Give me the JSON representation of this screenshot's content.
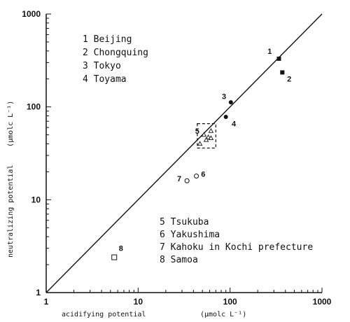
{
  "chart_data": {
    "type": "scatter",
    "xscale": "log",
    "yscale": "log",
    "xlim": [
      1,
      1000
    ],
    "ylim": [
      1,
      1000
    ],
    "x_ticks": [
      "1",
      "10",
      "100",
      "1000"
    ],
    "y_ticks": [
      "1",
      "10",
      "100",
      "1000"
    ],
    "xlabel": "acidifying potential",
    "xunit": "(μmolс L⁻¹)",
    "ylabel": "neutralizing potential",
    "yunit": "(μmolс L⁻¹)",
    "reference_line": "y = x",
    "grid": false,
    "legend_top": [
      "1 Beijing",
      "2 Chongquing",
      "3 Tokyo",
      "4 Toyama"
    ],
    "legend_bottom": [
      "5 Tsukuba",
      "6 Yakushima",
      "7 Kahoku in Kochi prefecture",
      "8 Samoa"
    ],
    "points": [
      {
        "label": "1",
        "x": 340,
        "y": 330,
        "marker": "filled-square"
      },
      {
        "label": "2",
        "x": 370,
        "y": 235,
        "marker": "filled-square"
      },
      {
        "label": "3",
        "x": 102,
        "y": 112,
        "marker": "filled-circle"
      },
      {
        "label": "4",
        "x": 90,
        "y": 78,
        "marker": "filled-circle"
      },
      {
        "label": "5",
        "x": 52,
        "y": 50,
        "marker": "open-triangle"
      },
      {
        "label": "5",
        "x": 62,
        "y": 55,
        "marker": "open-triangle"
      },
      {
        "label": "5",
        "x": 58,
        "y": 47,
        "marker": "open-triangle"
      },
      {
        "label": "5",
        "x": 62,
        "y": 46,
        "marker": "open-triangle"
      },
      {
        "label": "5",
        "x": 55,
        "y": 44,
        "marker": "open-triangle"
      },
      {
        "label": "5",
        "x": 47,
        "y": 40,
        "marker": "open-triangle"
      },
      {
        "label": "6",
        "x": 43,
        "y": 18,
        "marker": "open-circle"
      },
      {
        "label": "7",
        "x": 34,
        "y": 16,
        "marker": "open-circle"
      },
      {
        "label": "8",
        "x": 5.5,
        "y": 2.4,
        "marker": "open-square"
      }
    ],
    "point_labels": [
      {
        "text": "1",
        "x": 270,
        "y": 400
      },
      {
        "text": "2",
        "x": 440,
        "y": 200
      },
      {
        "text": "3",
        "x": 86,
        "y": 130
      },
      {
        "text": "4",
        "x": 110,
        "y": 66
      },
      {
        "text": "5",
        "x": 44,
        "y": 55
      },
      {
        "text": "6",
        "x": 51,
        "y": 19
      },
      {
        "text": "7",
        "x": 28,
        "y": 17
      },
      {
        "text": "8",
        "x": 6.5,
        "y": 3.0
      }
    ],
    "tsukuba_box": {
      "x": [
        44,
        70
      ],
      "y": [
        36,
        66
      ]
    }
  }
}
